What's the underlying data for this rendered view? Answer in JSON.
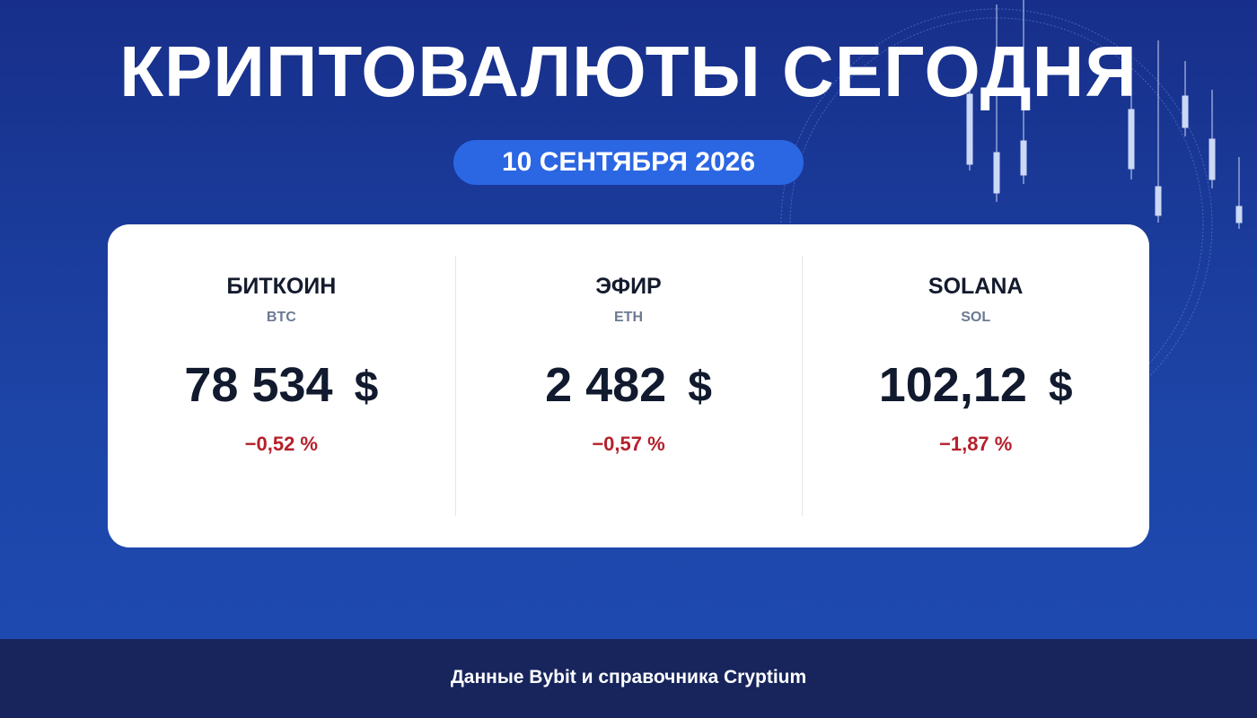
{
  "header": {
    "title": "КРИПТОВАЛЮТЫ СЕГОДНЯ",
    "date": "10 СЕНТЯБРЯ 2026"
  },
  "cards": [
    {
      "name": "БИТКОИН",
      "ticker": "BTC",
      "price": "78 534",
      "currency": "$",
      "change": "−0,52 %"
    },
    {
      "name": "ЭФИР",
      "ticker": "ETH",
      "price": "2 482",
      "currency": "$",
      "change": "−0,57 %"
    },
    {
      "name": "SOLANA",
      "ticker": "SOL",
      "price": "102,12",
      "currency": "$",
      "change": "−1,87 %"
    }
  ],
  "footer": {
    "source": "Данные Bybit и справочника Cryptium"
  }
}
